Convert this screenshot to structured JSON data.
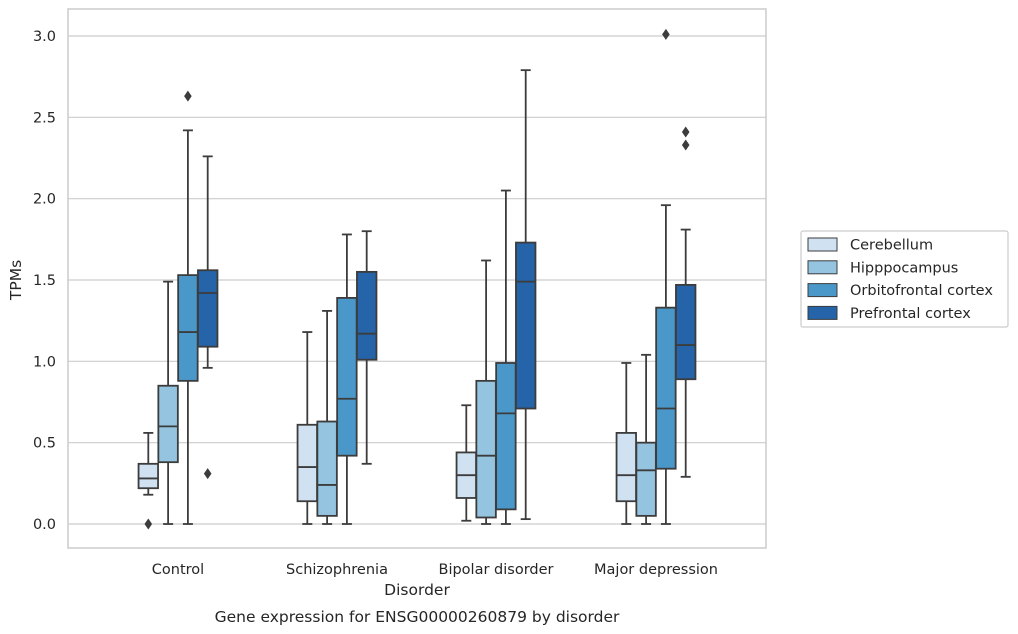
{
  "chart_data": {
    "type": "box",
    "xlabel": "Disorder",
    "ylabel": "TPMs",
    "caption": "Gene expression for ENSG00000260879 by disorder",
    "ylim": [
      -0.15,
      3.17
    ],
    "yticks": [
      "0.0",
      "0.5",
      "1.0",
      "1.5",
      "2.0",
      "2.5",
      "3.0"
    ],
    "ytick_values": [
      0,
      0.5,
      1.0,
      1.5,
      2.0,
      2.5,
      3.0
    ],
    "grid": "horizontal",
    "legend_position": "right",
    "categories": [
      "Control",
      "Schizophrenia",
      "Bipolar disorder",
      "Major depression"
    ],
    "series": [
      {
        "name": "Cerebellum",
        "color": "#d0e1f2",
        "boxes": [
          {
            "whisker_low": 0.18,
            "q1": 0.22,
            "median": 0.28,
            "q3": 0.37,
            "whisker_high": 0.56,
            "outliers": [
              0.0
            ]
          },
          {
            "whisker_low": 0.0,
            "q1": 0.14,
            "median": 0.35,
            "q3": 0.61,
            "whisker_high": 1.18,
            "outliers": []
          },
          {
            "whisker_low": 0.02,
            "q1": 0.16,
            "median": 0.3,
            "q3": 0.44,
            "whisker_high": 0.73,
            "outliers": []
          },
          {
            "whisker_low": 0.0,
            "q1": 0.14,
            "median": 0.3,
            "q3": 0.56,
            "whisker_high": 0.99,
            "outliers": []
          }
        ]
      },
      {
        "name": "Hipppocampus",
        "color": "#94c4df",
        "boxes": [
          {
            "whisker_low": 0.0,
            "q1": 0.38,
            "median": 0.6,
            "q3": 0.85,
            "whisker_high": 1.49,
            "outliers": []
          },
          {
            "whisker_low": 0.0,
            "q1": 0.05,
            "median": 0.24,
            "q3": 0.63,
            "whisker_high": 1.31,
            "outliers": []
          },
          {
            "whisker_low": 0.0,
            "q1": 0.04,
            "median": 0.42,
            "q3": 0.88,
            "whisker_high": 1.62,
            "outliers": []
          },
          {
            "whisker_low": 0.0,
            "q1": 0.05,
            "median": 0.33,
            "q3": 0.5,
            "whisker_high": 1.04,
            "outliers": []
          }
        ]
      },
      {
        "name": "Orbitofrontal cortex",
        "color": "#4a98c9",
        "boxes": [
          {
            "whisker_low": 0.0,
            "q1": 0.88,
            "median": 1.18,
            "q3": 1.53,
            "whisker_high": 2.42,
            "outliers": [
              2.63
            ]
          },
          {
            "whisker_low": 0.0,
            "q1": 0.42,
            "median": 0.77,
            "q3": 1.39,
            "whisker_high": 1.78,
            "outliers": []
          },
          {
            "whisker_low": 0.0,
            "q1": 0.09,
            "median": 0.68,
            "q3": 0.99,
            "whisker_high": 2.05,
            "outliers": []
          },
          {
            "whisker_low": 0.0,
            "q1": 0.34,
            "median": 0.71,
            "q3": 1.33,
            "whisker_high": 1.96,
            "outliers": [
              3.01
            ]
          }
        ]
      },
      {
        "name": "Prefrontal cortex",
        "color": "#2564a8",
        "boxes": [
          {
            "whisker_low": 0.96,
            "q1": 1.09,
            "median": 1.42,
            "q3": 1.56,
            "whisker_high": 2.26,
            "outliers": [
              0.31
            ]
          },
          {
            "whisker_low": 0.37,
            "q1": 1.01,
            "median": 1.17,
            "q3": 1.55,
            "whisker_high": 1.8,
            "outliers": []
          },
          {
            "whisker_low": 0.03,
            "q1": 0.71,
            "median": 1.49,
            "q3": 1.73,
            "whisker_high": 2.79,
            "outliers": []
          },
          {
            "whisker_low": 0.29,
            "q1": 0.89,
            "median": 1.1,
            "q3": 1.47,
            "whisker_high": 1.81,
            "outliers": [
              2.33,
              2.41
            ]
          }
        ]
      }
    ]
  }
}
